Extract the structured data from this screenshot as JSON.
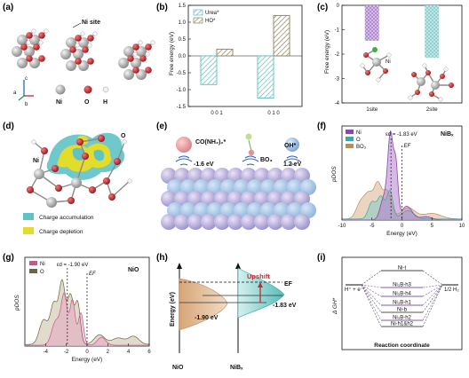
{
  "panels": {
    "a": {
      "letter": "(a)",
      "site_label": "Ni site",
      "legend": [
        "Ni",
        "O",
        "H"
      ],
      "axes": [
        "c",
        "a",
        "b"
      ]
    },
    "b": {
      "letter": "(b)"
    },
    "c": {
      "letter": "(c)",
      "ni_label": "Ni"
    },
    "d": {
      "letter": "(d)",
      "ni_label": "Ni",
      "o_label": "O",
      "legend": [
        "Charge accumulation",
        "Charge depletion"
      ]
    },
    "e": {
      "letter": "(e)",
      "mol1": "CO(NH₂)₂*",
      "mol2": "BO₃",
      "mol3": "OH*",
      "e1": "-1.6 eV",
      "e2": "1.2 eV"
    },
    "f": {
      "letter": "(f)",
      "title": "NiBₓ",
      "ed_label": "εd = -1.83 eV",
      "ef_label": "EF"
    },
    "g": {
      "letter": "(g)",
      "title": "NiO",
      "ed_label": "εd = -1.90 eV",
      "ef_label": "EF"
    },
    "h": {
      "letter": "(h)",
      "upshift": "Upshift",
      "ef_label": "EF",
      "left_val": "-1.90 eV",
      "right_val": "-1.83 eV",
      "ylabel": "Energy (eV)",
      "xlabel_left": "NiO",
      "xlabel_right": "NiBₓ"
    },
    "i": {
      "letter": "(i)",
      "left_state": "H⁺ + e⁻",
      "right_state": "1/2 H₂",
      "labels": [
        "Ni-t",
        "Ni₃B-h3",
        "Ni₃B-h4",
        "Ni₃B-h1",
        "Ni-b",
        "Ni₃B-h2",
        "Ni-h1&h2"
      ],
      "ylabel": "Δ GH*",
      "xlabel": "Reaction coordinate"
    }
  },
  "chart_data": [
    {
      "type": "bar",
      "panel": "b",
      "categories": [
        "0 0 1",
        "0 1 0"
      ],
      "series": [
        {
          "name": "Urea*",
          "values": [
            -0.85,
            -1.25
          ]
        },
        {
          "name": "HO*",
          "values": [
            0.2,
            1.2
          ]
        }
      ],
      "ylabel": "Free energy (eV)",
      "ylim": [
        -1.5,
        1.5
      ],
      "yticks": [
        "-1.5",
        "-1.0",
        "-0.5",
        "0.0",
        "0.5",
        "1.0",
        "1.5"
      ]
    },
    {
      "type": "bar",
      "panel": "c",
      "categories": [
        "1site",
        "2site"
      ],
      "series": [
        {
          "values": [
            -1.45,
            -2.15
          ]
        }
      ],
      "ylabel": "Free energy (eV)",
      "ylim": [
        -4,
        0
      ],
      "yticks": [
        "0",
        "-1",
        "-2",
        "-3",
        "-4"
      ]
    },
    {
      "type": "area",
      "panel": "f",
      "series": [
        {
          "name": "Ni"
        },
        {
          "name": "O"
        },
        {
          "name": "BO₃"
        }
      ],
      "xlabel": "Energy (eV)",
      "ylabel": "pDOS",
      "xlim": [
        -10,
        10
      ],
      "xticks": [
        "-10",
        "-5",
        "0",
        "5",
        "10"
      ]
    },
    {
      "type": "area",
      "panel": "g",
      "series": [
        {
          "name": "Ni"
        },
        {
          "name": "O"
        }
      ],
      "xlabel": "Energy (eV)",
      "ylabel": "pDOS",
      "xlim": [
        -6,
        6
      ],
      "xticks": [
        "-4",
        "-2",
        "0",
        "2",
        "4",
        "6"
      ]
    }
  ],
  "colors": {
    "teal": "#5fbfbd",
    "olive": "#9a9368",
    "purple": "#8a4aa8",
    "pink": "#c25a86",
    "tan": "#d8b48c",
    "ni_gray": "#a9a9a9",
    "o_red": "#c2272d"
  }
}
